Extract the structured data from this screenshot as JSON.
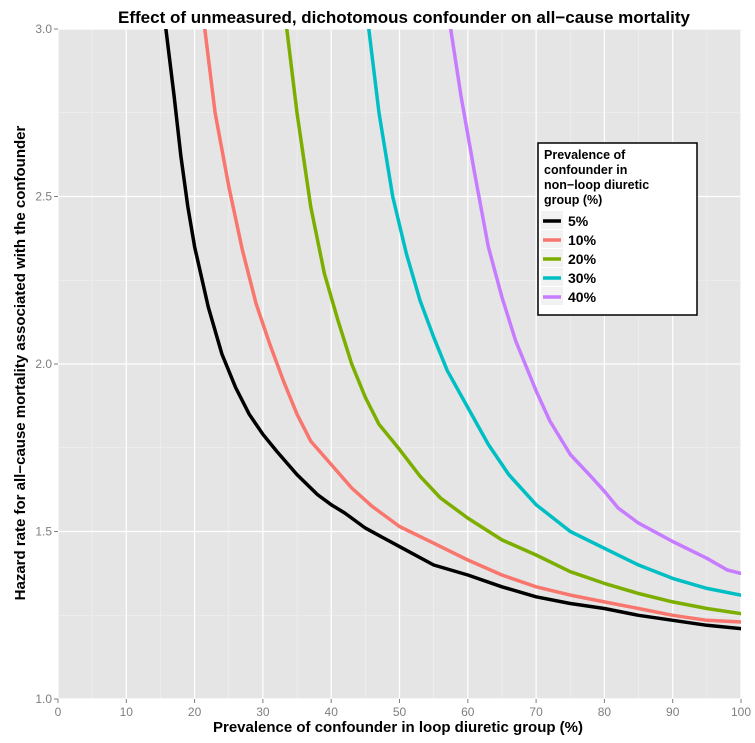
{
  "chart_data": {
    "type": "line",
    "title": "Effect of unmeasured, dichotomous confounder on all−cause mortality",
    "xlabel": "Prevalence of confounder in loop diuretic group (%)",
    "ylabel": "Hazard rate for all−cause mortality associated with the confounder",
    "xlim": [
      0,
      100
    ],
    "ylim": [
      1.0,
      3.0
    ],
    "x_ticks": [
      "0",
      "10",
      "20",
      "30",
      "40",
      "50",
      "60",
      "70",
      "80",
      "90",
      "100"
    ],
    "y_ticks": [
      "1.0",
      "1.5",
      "2.0",
      "2.5",
      "3.0"
    ],
    "grid": true,
    "legend": {
      "title_lines": [
        "Prevalence of",
        "confounder in",
        "non−loop diuretic",
        "group (%)"
      ],
      "placement": "right"
    },
    "series": [
      {
        "name": "5%",
        "color": "#000000",
        "points": [
          [
            15.8,
            3.0
          ],
          [
            17,
            2.8
          ],
          [
            18,
            2.62
          ],
          [
            19,
            2.47
          ],
          [
            20,
            2.35
          ],
          [
            22,
            2.17
          ],
          [
            24,
            2.03
          ],
          [
            26,
            1.93
          ],
          [
            28,
            1.85
          ],
          [
            30,
            1.79
          ],
          [
            32,
            1.74
          ],
          [
            35,
            1.67
          ],
          [
            38,
            1.61
          ],
          [
            40,
            1.58
          ],
          [
            42,
            1.555
          ],
          [
            45,
            1.51
          ],
          [
            50,
            1.455
          ],
          [
            55,
            1.4
          ],
          [
            60,
            1.37
          ],
          [
            65,
            1.335
          ],
          [
            70,
            1.305
          ],
          [
            75,
            1.285
          ],
          [
            80,
            1.27
          ],
          [
            85,
            1.25
          ],
          [
            90,
            1.235
          ],
          [
            95,
            1.22
          ],
          [
            100,
            1.21
          ]
        ]
      },
      {
        "name": "10%",
        "color": "#F8766D",
        "points": [
          [
            21.5,
            3.0
          ],
          [
            23,
            2.75
          ],
          [
            25,
            2.53
          ],
          [
            27,
            2.34
          ],
          [
            29,
            2.18
          ],
          [
            31,
            2.06
          ],
          [
            33,
            1.95
          ],
          [
            35,
            1.85
          ],
          [
            37,
            1.77
          ],
          [
            40,
            1.7
          ],
          [
            43,
            1.63
          ],
          [
            46,
            1.575
          ],
          [
            50,
            1.515
          ],
          [
            55,
            1.465
          ],
          [
            60,
            1.415
          ],
          [
            65,
            1.37
          ],
          [
            70,
            1.335
          ],
          [
            75,
            1.31
          ],
          [
            80,
            1.29
          ],
          [
            85,
            1.27
          ],
          [
            90,
            1.25
          ],
          [
            95,
            1.235
          ],
          [
            100,
            1.23
          ]
        ]
      },
      {
        "name": "20%",
        "color": "#7CAE00",
        "points": [
          [
            33.5,
            3.0
          ],
          [
            35,
            2.75
          ],
          [
            37,
            2.47
          ],
          [
            39,
            2.27
          ],
          [
            41,
            2.13
          ],
          [
            43,
            2.0
          ],
          [
            45,
            1.9
          ],
          [
            47,
            1.82
          ],
          [
            50,
            1.745
          ],
          [
            53,
            1.665
          ],
          [
            56,
            1.6
          ],
          [
            60,
            1.54
          ],
          [
            65,
            1.475
          ],
          [
            70,
            1.43
          ],
          [
            75,
            1.38
          ],
          [
            80,
            1.345
          ],
          [
            85,
            1.315
          ],
          [
            90,
            1.29
          ],
          [
            95,
            1.27
          ],
          [
            100,
            1.255
          ]
        ]
      },
      {
        "name": "30%",
        "color": "#00BFC4",
        "points": [
          [
            45.5,
            3.0
          ],
          [
            47,
            2.75
          ],
          [
            49,
            2.5
          ],
          [
            51,
            2.33
          ],
          [
            53,
            2.19
          ],
          [
            55,
            2.08
          ],
          [
            57,
            1.98
          ],
          [
            60,
            1.87
          ],
          [
            63,
            1.76
          ],
          [
            66,
            1.67
          ],
          [
            70,
            1.58
          ],
          [
            75,
            1.5
          ],
          [
            80,
            1.45
          ],
          [
            85,
            1.4
          ],
          [
            90,
            1.36
          ],
          [
            95,
            1.33
          ],
          [
            100,
            1.31
          ]
        ]
      },
      {
        "name": "40%",
        "color": "#C77CFF",
        "points": [
          [
            57.5,
            3.0
          ],
          [
            59,
            2.8
          ],
          [
            61,
            2.57
          ],
          [
            63,
            2.35
          ],
          [
            65,
            2.2
          ],
          [
            67,
            2.07
          ],
          [
            70,
            1.92
          ],
          [
            72,
            1.83
          ],
          [
            75,
            1.73
          ],
          [
            78,
            1.665
          ],
          [
            80,
            1.62
          ],
          [
            82,
            1.57
          ],
          [
            85,
            1.525
          ],
          [
            90,
            1.47
          ],
          [
            95,
            1.42
          ],
          [
            98,
            1.385
          ],
          [
            100,
            1.375
          ]
        ]
      }
    ]
  }
}
